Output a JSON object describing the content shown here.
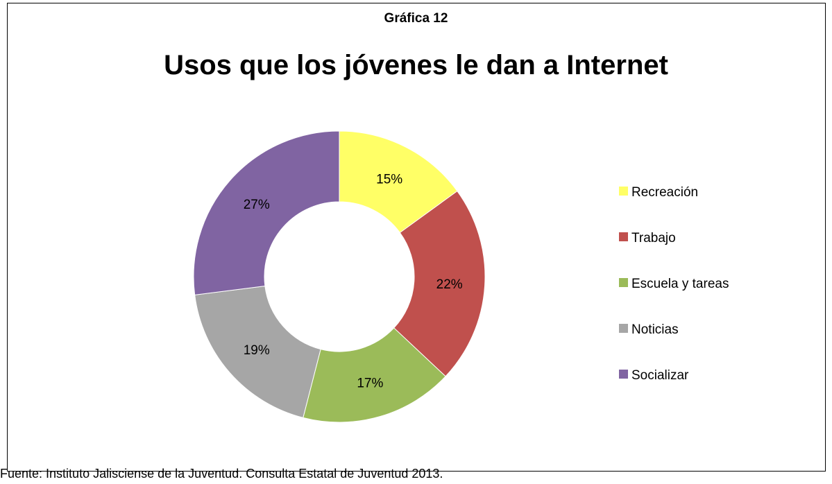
{
  "caption": "Gráfica 12",
  "chart_data": {
    "type": "pie",
    "variant": "donut",
    "title": "Usos que los jóvenes le dan a Internet",
    "categories": [
      "Recreación",
      "Trabajo",
      "Escuela y tareas",
      "Noticias",
      "Socializar"
    ],
    "values": [
      15,
      22,
      17,
      19,
      27
    ],
    "value_labels": [
      "15%",
      "22%",
      "17%",
      "19%",
      "27%"
    ],
    "colors": [
      "#FFFF66",
      "#C0504D",
      "#9BBB59",
      "#A6A6A6",
      "#8064A2"
    ],
    "legend_position": "right"
  },
  "source": "Fuente: Instituto Jalisciense de la Juventud. Consulta Estatal de Juventud 2013."
}
